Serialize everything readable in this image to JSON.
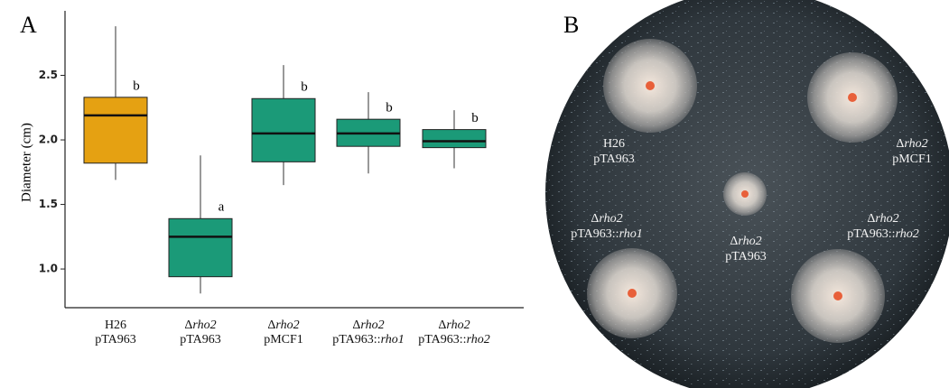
{
  "panel_labels": [
    "A",
    "B"
  ],
  "chart_data": {
    "type": "box",
    "ylabel": "Diameter (cm)",
    "categories": [
      [
        [
          "H26"
        ],
        [
          "pTA963"
        ]
      ],
      [
        [
          "Δ",
          "rho2"
        ],
        [
          "pTA963"
        ]
      ],
      [
        [
          "Δ",
          "rho2"
        ],
        [
          "pMCF1"
        ]
      ],
      [
        [
          "Δ",
          "rho2"
        ],
        [
          "pTA963::",
          "rho1"
        ]
      ],
      [
        [
          "Δ",
          "rho2"
        ],
        [
          "pTA963::",
          "rho2"
        ]
      ]
    ],
    "boxes": [
      {
        "low": 1.69,
        "q1": 1.82,
        "median": 2.19,
        "q3": 2.33,
        "high": 2.88
      },
      {
        "low": 0.81,
        "q1": 0.94,
        "median": 1.25,
        "q3": 1.39,
        "high": 1.88
      },
      {
        "low": 1.65,
        "q1": 1.83,
        "median": 2.05,
        "q3": 2.32,
        "high": 2.58
      },
      {
        "low": 1.74,
        "q1": 1.95,
        "median": 2.05,
        "q3": 2.16,
        "high": 2.37
      },
      {
        "low": 1.78,
        "q1": 1.94,
        "median": 1.99,
        "q3": 2.08,
        "high": 2.23
      }
    ],
    "letters": [
      "b",
      "a",
      "b",
      "b",
      "b"
    ],
    "colors": [
      "#e5a112",
      "#1b9a78",
      "#1b9a78",
      "#1b9a78",
      "#1b9a78"
    ],
    "ylim": [
      0.7,
      3.0
    ],
    "yticks": [
      {
        "value": 1,
        "label": "1.0"
      },
      1.5,
      {
        "value": 2,
        "label": "2.0"
      },
      2.5
    ]
  },
  "plate": {
    "labels": [
      [
        [
          "H26"
        ],
        [
          "pTA963"
        ]
      ],
      [
        [
          "Δ",
          "rho2"
        ],
        [
          "pMCF1"
        ]
      ],
      [
        [
          "Δ",
          "rho2"
        ],
        [
          "pTA963::",
          "rho1"
        ]
      ],
      [
        [
          "Δ",
          "rho2"
        ],
        [
          "pTA963"
        ]
      ],
      [
        [
          "Δ",
          "rho2"
        ],
        [
          "pTA963::",
          "rho2"
        ]
      ]
    ]
  }
}
